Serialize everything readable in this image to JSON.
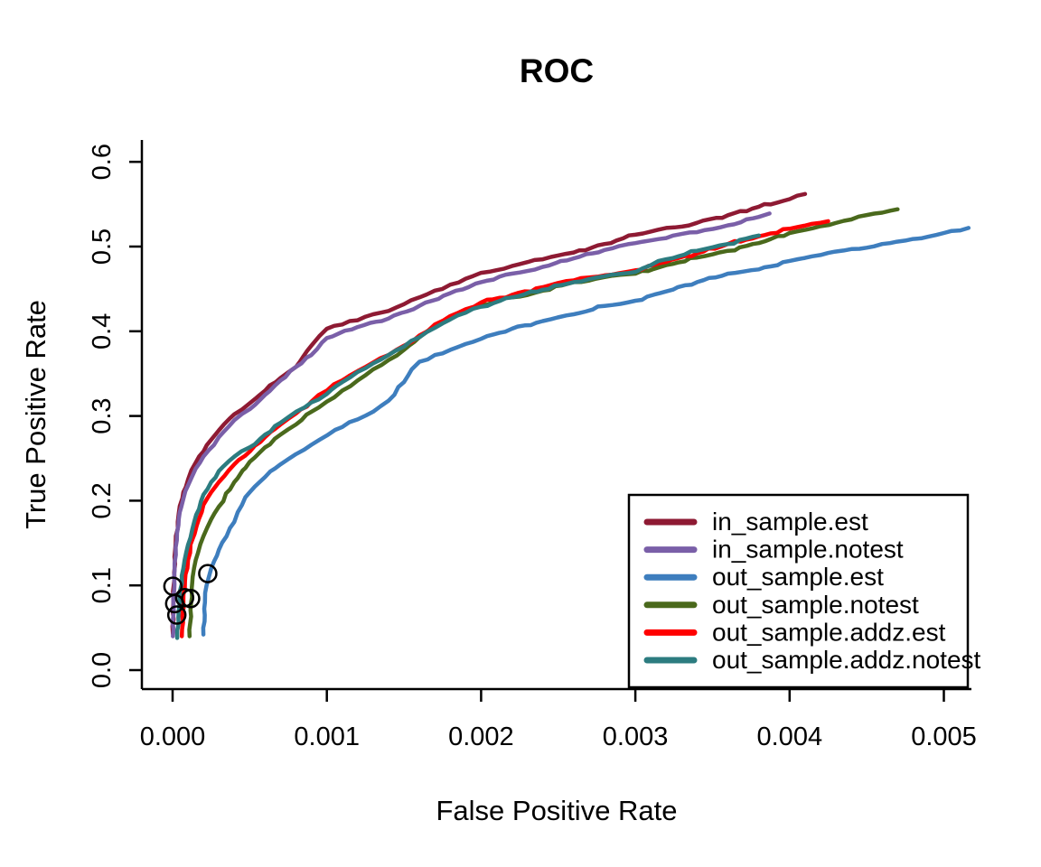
{
  "chart_data": {
    "type": "line",
    "title": "ROC",
    "xlabel": "False Positive Rate",
    "ylabel": "True Positive Rate",
    "xlim": [
      0,
      0.0052
    ],
    "ylim": [
      0,
      0.6
    ],
    "grid": false,
    "legend_position": "bottom-right",
    "x_ticks": {
      "values": [
        0,
        0.001,
        0.002,
        0.003,
        0.004,
        0.005
      ],
      "labels": [
        "0.000",
        "0.001",
        "0.002",
        "0.003",
        "0.004",
        "0.005"
      ]
    },
    "y_ticks": {
      "values": [
        0.0,
        0.1,
        0.2,
        0.3,
        0.4,
        0.5,
        0.6
      ],
      "labels": [
        "0.0",
        "0.1",
        "0.2",
        "0.3",
        "0.4",
        "0.5",
        "0.6"
      ]
    },
    "axis_color": "#000000",
    "series": [
      {
        "name": "in_sample.est",
        "color": "#8E1A33",
        "points": [
          [
            2e-06,
            0.043
          ],
          [
            5e-06,
            0.085
          ],
          [
            1e-05,
            0.115
          ],
          [
            2e-05,
            0.15
          ],
          [
            4e-05,
            0.185
          ],
          [
            7e-05,
            0.21
          ],
          [
            0.0001,
            0.225
          ],
          [
            0.00015,
            0.245
          ],
          [
            0.0002,
            0.258
          ],
          [
            0.00025,
            0.272
          ],
          [
            0.0003,
            0.283
          ],
          [
            0.0004,
            0.302
          ],
          [
            0.0005,
            0.315
          ],
          [
            0.0006,
            0.33
          ],
          [
            0.0007,
            0.345
          ],
          [
            0.0008,
            0.358
          ],
          [
            0.0009,
            0.383
          ],
          [
            0.00095,
            0.394
          ],
          [
            0.001,
            0.403
          ],
          [
            0.0011,
            0.408
          ],
          [
            0.0012,
            0.413
          ],
          [
            0.0013,
            0.42
          ],
          [
            0.0014,
            0.424
          ],
          [
            0.0015,
            0.432
          ],
          [
            0.0016,
            0.44
          ],
          [
            0.0017,
            0.448
          ],
          [
            0.0018,
            0.455
          ],
          [
            0.0019,
            0.462
          ],
          [
            0.002,
            0.469
          ],
          [
            0.0022,
            0.477
          ],
          [
            0.0024,
            0.485
          ],
          [
            0.0026,
            0.493
          ],
          [
            0.0028,
            0.503
          ],
          [
            0.003,
            0.514
          ],
          [
            0.0032,
            0.522
          ],
          [
            0.0034,
            0.528
          ],
          [
            0.0036,
            0.537
          ],
          [
            0.0038,
            0.547
          ],
          [
            0.004,
            0.556
          ],
          [
            0.0041,
            0.562
          ]
        ]
      },
      {
        "name": "in_sample.notest",
        "color": "#7A5FA8",
        "points": [
          [
            2e-06,
            0.04
          ],
          [
            5e-06,
            0.08
          ],
          [
            1e-05,
            0.11
          ],
          [
            2e-05,
            0.145
          ],
          [
            4e-05,
            0.178
          ],
          [
            7e-05,
            0.202
          ],
          [
            0.0001,
            0.218
          ],
          [
            0.00015,
            0.238
          ],
          [
            0.0002,
            0.252
          ],
          [
            0.0003,
            0.275
          ],
          [
            0.0004,
            0.295
          ],
          [
            0.0005,
            0.308
          ],
          [
            0.0006,
            0.325
          ],
          [
            0.0007,
            0.342
          ],
          [
            0.0008,
            0.358
          ],
          [
            0.0009,
            0.372
          ],
          [
            0.001,
            0.392
          ],
          [
            0.0012,
            0.405
          ],
          [
            0.0014,
            0.415
          ],
          [
            0.0016,
            0.43
          ],
          [
            0.0018,
            0.445
          ],
          [
            0.002,
            0.458
          ],
          [
            0.0022,
            0.468
          ],
          [
            0.0024,
            0.476
          ],
          [
            0.0026,
            0.486
          ],
          [
            0.0028,
            0.496
          ],
          [
            0.003,
            0.504
          ],
          [
            0.0032,
            0.51
          ],
          [
            0.0034,
            0.517
          ],
          [
            0.0036,
            0.525
          ],
          [
            0.0038,
            0.535
          ],
          [
            0.00387,
            0.539
          ]
        ]
      },
      {
        "name": "out_sample.est",
        "color": "#3E7EBE",
        "points": [
          [
            0.0002,
            0.042
          ],
          [
            0.00021,
            0.08
          ],
          [
            0.00022,
            0.1
          ],
          [
            0.00025,
            0.12
          ],
          [
            0.0003,
            0.142
          ],
          [
            0.00035,
            0.158
          ],
          [
            0.0004,
            0.175
          ],
          [
            0.00045,
            0.195
          ],
          [
            0.0005,
            0.21
          ],
          [
            0.0006,
            0.228
          ],
          [
            0.0007,
            0.243
          ],
          [
            0.0008,
            0.255
          ],
          [
            0.0009,
            0.266
          ],
          [
            0.001,
            0.277
          ],
          [
            0.0011,
            0.287
          ],
          [
            0.0012,
            0.296
          ],
          [
            0.0013,
            0.305
          ],
          [
            0.0014,
            0.318
          ],
          [
            0.0015,
            0.34
          ],
          [
            0.00155,
            0.355
          ],
          [
            0.0016,
            0.364
          ],
          [
            0.0017,
            0.372
          ],
          [
            0.0018,
            0.378
          ],
          [
            0.0019,
            0.385
          ],
          [
            0.002,
            0.391
          ],
          [
            0.0022,
            0.403
          ],
          [
            0.0024,
            0.412
          ],
          [
            0.0026,
            0.42
          ],
          [
            0.0028,
            0.43
          ],
          [
            0.003,
            0.436
          ],
          [
            0.0032,
            0.447
          ],
          [
            0.0034,
            0.458
          ],
          [
            0.0036,
            0.468
          ],
          [
            0.0038,
            0.473
          ],
          [
            0.004,
            0.483
          ],
          [
            0.0042,
            0.49
          ],
          [
            0.0044,
            0.497
          ],
          [
            0.0046,
            0.503
          ],
          [
            0.0048,
            0.509
          ],
          [
            0.005,
            0.516
          ],
          [
            0.00516,
            0.522
          ]
        ]
      },
      {
        "name": "out_sample.notest",
        "color": "#4A691C",
        "points": [
          [
            0.00011,
            0.04
          ],
          [
            0.00012,
            0.08
          ],
          [
            0.00013,
            0.11
          ],
          [
            0.00015,
            0.13
          ],
          [
            0.0002,
            0.158
          ],
          [
            0.00025,
            0.178
          ],
          [
            0.0003,
            0.193
          ],
          [
            0.0004,
            0.222
          ],
          [
            0.0005,
            0.246
          ],
          [
            0.0006,
            0.263
          ],
          [
            0.0007,
            0.278
          ],
          [
            0.0008,
            0.29
          ],
          [
            0.0009,
            0.305
          ],
          [
            0.001,
            0.317
          ],
          [
            0.0011,
            0.33
          ],
          [
            0.0012,
            0.342
          ],
          [
            0.0013,
            0.355
          ],
          [
            0.0014,
            0.366
          ],
          [
            0.0015,
            0.378
          ],
          [
            0.0016,
            0.393
          ],
          [
            0.0017,
            0.405
          ],
          [
            0.0018,
            0.415
          ],
          [
            0.0019,
            0.423
          ],
          [
            0.002,
            0.431
          ],
          [
            0.0022,
            0.44
          ],
          [
            0.0024,
            0.448
          ],
          [
            0.0026,
            0.458
          ],
          [
            0.0028,
            0.464
          ],
          [
            0.003,
            0.468
          ],
          [
            0.0032,
            0.478
          ],
          [
            0.0034,
            0.487
          ],
          [
            0.0036,
            0.495
          ],
          [
            0.0038,
            0.504
          ],
          [
            0.004,
            0.516
          ],
          [
            0.0042,
            0.524
          ],
          [
            0.0044,
            0.532
          ],
          [
            0.0046,
            0.54
          ],
          [
            0.0047,
            0.544
          ]
        ]
      },
      {
        "name": "out_sample.addz.est",
        "color": "#FF0000",
        "points": [
          [
            6e-05,
            0.04
          ],
          [
            7e-05,
            0.08
          ],
          [
            8e-05,
            0.105
          ],
          [
            0.0001,
            0.13
          ],
          [
            0.00013,
            0.155
          ],
          [
            0.00017,
            0.178
          ],
          [
            0.0002,
            0.195
          ],
          [
            0.00025,
            0.21
          ],
          [
            0.0003,
            0.222
          ],
          [
            0.0004,
            0.243
          ],
          [
            0.0005,
            0.258
          ],
          [
            0.0006,
            0.275
          ],
          [
            0.0007,
            0.29
          ],
          [
            0.0008,
            0.303
          ],
          [
            0.0009,
            0.317
          ],
          [
            0.001,
            0.33
          ],
          [
            0.0011,
            0.342
          ],
          [
            0.0012,
            0.353
          ],
          [
            0.0013,
            0.363
          ],
          [
            0.0014,
            0.372
          ],
          [
            0.0015,
            0.383
          ],
          [
            0.0016,
            0.395
          ],
          [
            0.0017,
            0.408
          ],
          [
            0.0018,
            0.418
          ],
          [
            0.0019,
            0.426
          ],
          [
            0.002,
            0.434
          ],
          [
            0.0022,
            0.443
          ],
          [
            0.0024,
            0.452
          ],
          [
            0.0026,
            0.46
          ],
          [
            0.0028,
            0.466
          ],
          [
            0.003,
            0.472
          ],
          [
            0.0032,
            0.482
          ],
          [
            0.0034,
            0.492
          ],
          [
            0.0036,
            0.503
          ],
          [
            0.0038,
            0.512
          ],
          [
            0.004,
            0.521
          ],
          [
            0.0042,
            0.528
          ],
          [
            0.00425,
            0.53
          ]
        ]
      },
      {
        "name": "out_sample.addz.notest",
        "color": "#2C7C80",
        "points": [
          [
            3e-05,
            0.038
          ],
          [
            4e-05,
            0.07
          ],
          [
            5e-05,
            0.095
          ],
          [
            7e-05,
            0.12
          ],
          [
            0.0001,
            0.148
          ],
          [
            0.00014,
            0.175
          ],
          [
            0.0002,
            0.207
          ],
          [
            0.00025,
            0.222
          ],
          [
            0.0003,
            0.235
          ],
          [
            0.0004,
            0.252
          ],
          [
            0.0005,
            0.263
          ],
          [
            0.0006,
            0.278
          ],
          [
            0.0007,
            0.292
          ],
          [
            0.0008,
            0.305
          ],
          [
            0.0009,
            0.316
          ],
          [
            0.001,
            0.326
          ],
          [
            0.0011,
            0.34
          ],
          [
            0.0012,
            0.352
          ],
          [
            0.0013,
            0.362
          ],
          [
            0.0014,
            0.372
          ],
          [
            0.0015,
            0.382
          ],
          [
            0.0016,
            0.393
          ],
          [
            0.0017,
            0.404
          ],
          [
            0.0018,
            0.414
          ],
          [
            0.0019,
            0.422
          ],
          [
            0.002,
            0.429
          ],
          [
            0.0022,
            0.44
          ],
          [
            0.0024,
            0.449
          ],
          [
            0.0026,
            0.458
          ],
          [
            0.0028,
            0.465
          ],
          [
            0.003,
            0.47
          ],
          [
            0.0031,
            0.478
          ],
          [
            0.0032,
            0.485
          ],
          [
            0.0034,
            0.495
          ],
          [
            0.0036,
            0.503
          ],
          [
            0.0038,
            0.513
          ]
        ]
      }
    ],
    "threshold_markers": {
      "shape": "open-circle",
      "color": "#000000",
      "points": [
        [
          0.000228,
          0.114
        ],
        [
          2e-06,
          0.099
        ],
        [
          7.8e-05,
          0.0855
        ],
        [
          0.000117,
          0.0845
        ],
        [
          1.35e-05,
          0.0785
        ],
        [
          2.75e-05,
          0.065
        ]
      ]
    }
  }
}
